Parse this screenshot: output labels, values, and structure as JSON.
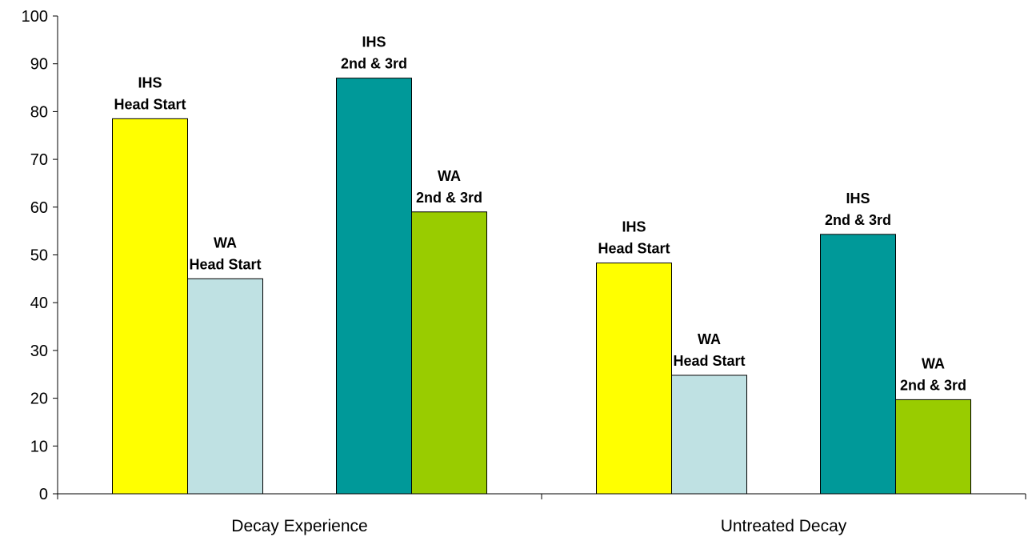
{
  "chart_data": {
    "type": "bar",
    "title": "",
    "xlabel": "",
    "ylabel": "",
    "ylim": [
      0,
      100
    ],
    "yticks": [
      0,
      10,
      20,
      30,
      40,
      50,
      60,
      70,
      80,
      90,
      100
    ],
    "grid": false,
    "legend": "none",
    "categories": [
      "Decay Experience",
      "Untreated Decay"
    ],
    "series": [
      {
        "label_lines": [
          "IHS",
          "Head Start"
        ],
        "color": "#FFFF00",
        "values": [
          78.5,
          48.3
        ]
      },
      {
        "label_lines": [
          "WA",
          "Head Start"
        ],
        "color": "#BFE1E3",
        "values": [
          45,
          24.8
        ]
      },
      {
        "label_lines": [
          "IHS",
          "2nd & 3rd"
        ],
        "color": "#009999",
        "values": [
          87,
          54.3
        ]
      },
      {
        "label_lines": [
          "WA",
          "2nd & 3rd"
        ],
        "color": "#99CC00",
        "values": [
          59,
          19.7
        ]
      }
    ]
  }
}
